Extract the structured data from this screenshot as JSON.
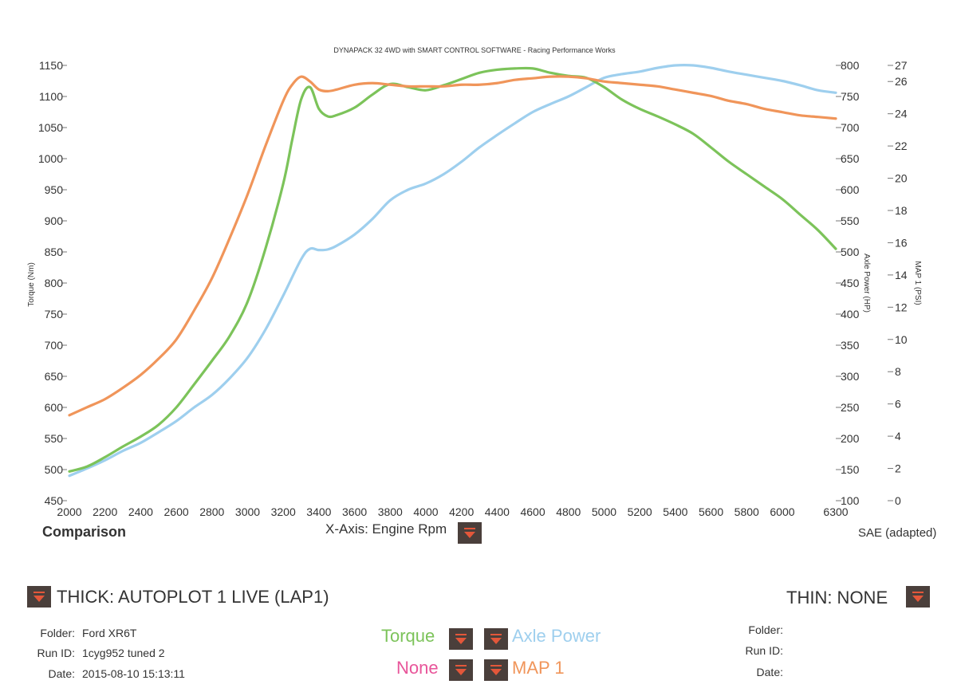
{
  "chart_data": {
    "type": "line",
    "title": "DYNAPACK 32 4WD with SMART CONTROL SOFTWARE - Racing Performance Works",
    "xlabel": "X-Axis: Engine Rpm",
    "x_ticks": [
      "2000",
      "2200",
      "2400",
      "2600",
      "2800",
      "3000",
      "3200",
      "3400",
      "3600",
      "3800",
      "4000",
      "4200",
      "4400",
      "4600",
      "4800",
      "5000",
      "5200",
      "5400",
      "5600",
      "5800",
      "6000",
      "6300"
    ],
    "xlim": [
      2000,
      6300
    ],
    "left_axis": {
      "label": "Torque (Nm)",
      "range": [
        450,
        1150
      ],
      "ticks": [
        "450",
        "500",
        "550",
        "600",
        "650",
        "700",
        "750",
        "800",
        "850",
        "900",
        "950",
        "1000",
        "1050",
        "1100",
        "1150"
      ]
    },
    "right_axis_1": {
      "label": "Axle Power (HP)",
      "range": [
        100,
        800
      ],
      "ticks": [
        "100",
        "150",
        "200",
        "250",
        "300",
        "350",
        "400",
        "450",
        "500",
        "550",
        "600",
        "650",
        "700",
        "750",
        "800"
      ]
    },
    "right_axis_2": {
      "label": "MAP 1 (PSI)",
      "range": [
        0,
        27
      ],
      "ticks": [
        "0",
        "2",
        "4",
        "6",
        "8",
        "10",
        "12",
        "14",
        "16",
        "18",
        "20",
        "22",
        "24",
        "26",
        "27"
      ]
    },
    "series": [
      {
        "name": "Torque",
        "axis": "left",
        "color": "#7cc35a",
        "x": [
          2000,
          2100,
          2200,
          2300,
          2400,
          2500,
          2600,
          2700,
          2800,
          2900,
          3000,
          3100,
          3200,
          3250,
          3300,
          3350,
          3400,
          3450,
          3500,
          3600,
          3700,
          3800,
          3900,
          4000,
          4100,
          4200,
          4300,
          4400,
          4500,
          4600,
          4700,
          4800,
          4900,
          5000,
          5100,
          5200,
          5300,
          5400,
          5500,
          5600,
          5700,
          5800,
          5900,
          6000,
          6100,
          6200,
          6300
        ],
        "values": [
          497,
          505,
          520,
          537,
          553,
          572,
          600,
          637,
          675,
          715,
          770,
          855,
          960,
          1030,
          1095,
          1115,
          1080,
          1068,
          1070,
          1082,
          1103,
          1120,
          1115,
          1110,
          1118,
          1128,
          1138,
          1143,
          1145,
          1145,
          1138,
          1133,
          1130,
          1115,
          1095,
          1080,
          1068,
          1055,
          1040,
          1018,
          995,
          975,
          955,
          935,
          910,
          885,
          855
        ]
      },
      {
        "name": "Axle Power",
        "axis": "right_axis_1",
        "color": "#9ecfee",
        "x": [
          2000,
          2100,
          2200,
          2300,
          2400,
          2500,
          2600,
          2700,
          2800,
          2900,
          3000,
          3100,
          3200,
          3300,
          3350,
          3400,
          3450,
          3500,
          3600,
          3700,
          3800,
          3900,
          4000,
          4100,
          4200,
          4300,
          4400,
          4500,
          4600,
          4700,
          4800,
          4900,
          5000,
          5100,
          5200,
          5300,
          5400,
          5500,
          5600,
          5700,
          5800,
          5900,
          6000,
          6100,
          6200,
          6300
        ],
        "values": [
          140,
          152,
          165,
          180,
          193,
          210,
          228,
          250,
          270,
          297,
          330,
          375,
          430,
          488,
          505,
          503,
          504,
          510,
          528,
          553,
          583,
          600,
          610,
          625,
          645,
          668,
          688,
          707,
          725,
          738,
          750,
          765,
          780,
          786,
          790,
          796,
          800,
          800,
          796,
          790,
          785,
          780,
          775,
          768,
          760,
          756
        ]
      },
      {
        "name": "MAP 1",
        "axis": "right_axis_2",
        "color": "#f0955a",
        "x": [
          2000,
          2100,
          2200,
          2300,
          2400,
          2500,
          2600,
          2700,
          2800,
          2900,
          3000,
          3100,
          3200,
          3250,
          3300,
          3350,
          3400,
          3450,
          3500,
          3600,
          3700,
          3800,
          3900,
          4000,
          4100,
          4200,
          4300,
          4400,
          4500,
          4600,
          4700,
          4800,
          4900,
          5000,
          5100,
          5200,
          5300,
          5400,
          5500,
          5600,
          5700,
          5800,
          5900,
          6000,
          6100,
          6200,
          6300
        ],
        "values": [
          5.3,
          5.8,
          6.3,
          7.0,
          7.8,
          8.8,
          10.0,
          11.8,
          13.8,
          16.3,
          19.0,
          22.0,
          24.8,
          25.8,
          26.3,
          26.0,
          25.5,
          25.4,
          25.5,
          25.8,
          25.9,
          25.8,
          25.7,
          25.7,
          25.7,
          25.8,
          25.8,
          25.9,
          26.1,
          26.2,
          26.3,
          26.3,
          26.2,
          26.0,
          25.9,
          25.8,
          25.7,
          25.5,
          25.3,
          25.1,
          24.8,
          24.6,
          24.3,
          24.1,
          23.9,
          23.8,
          23.7
        ]
      }
    ],
    "grid": false
  },
  "labels": {
    "left_axis_label": "Torque (Nm)",
    "right_axis_1_label": "Axle Power (HP)",
    "right_axis_2_label": "MAP 1 (PSI)",
    "comparison": "Comparison",
    "xaxis_label": "X-Axis: Engine Rpm",
    "sae": "SAE (adapted)",
    "thick": "THICK: AUTOPLOT 1 LIVE (LAP1)",
    "thin": "THIN: NONE",
    "folder_key": "Folder:",
    "runid_key": "Run ID:",
    "date_key": "Date:",
    "folder_val": "Ford XR6T",
    "runid_val": "1cyg952 tuned 2",
    "date_val": "2015-08-10 15:13:11",
    "torque": "Torque",
    "axle_power": "Axle Power",
    "none": "None",
    "map1": "MAP 1"
  },
  "colors": {
    "torque": "#7cc35a",
    "axle_power": "#9ecfee",
    "map1": "#f0955a",
    "none": "#e8559a",
    "dropdown_bg": "#4a3f3b",
    "dropdown_arrow": "#e3573a"
  }
}
